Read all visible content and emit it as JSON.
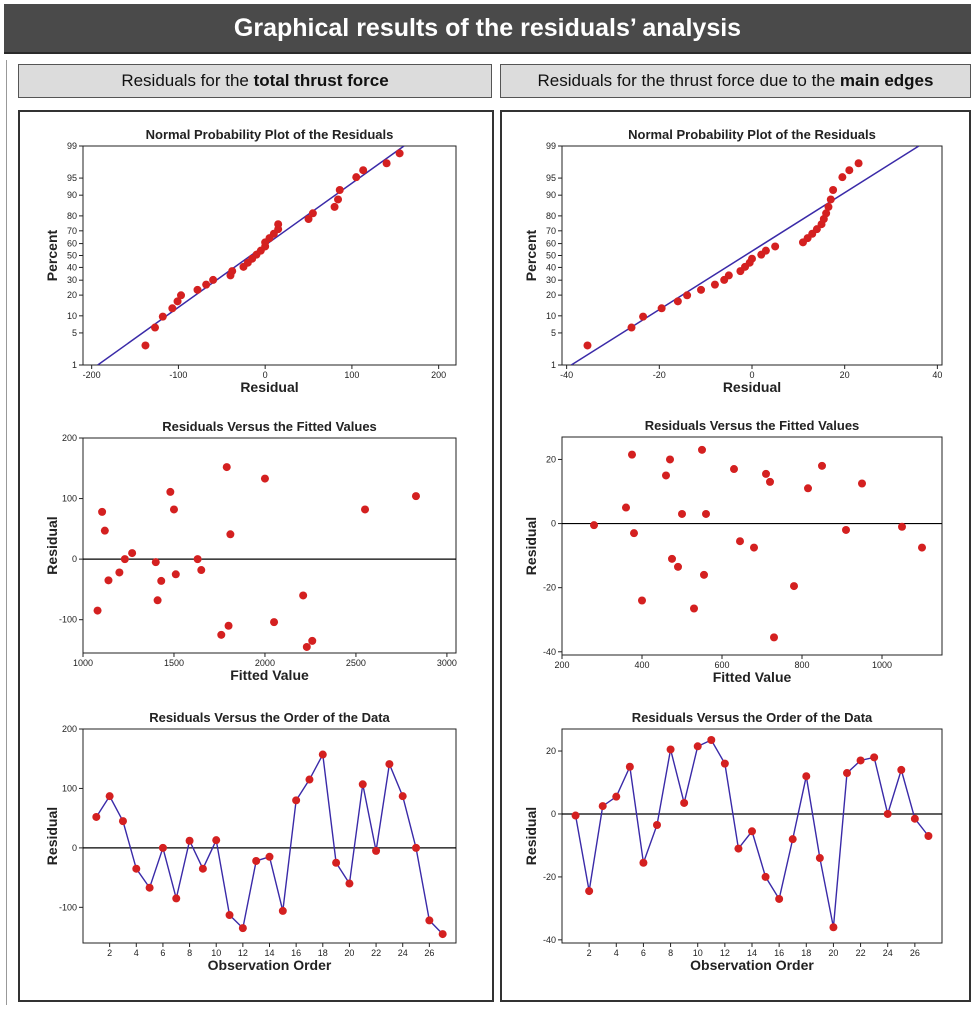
{
  "banner_title": "Graphical results of the residuals’ analysis",
  "left_header": {
    "prefix": "Residuals for the ",
    "bold": "total thrust force"
  },
  "right_header": {
    "prefix": "Residuals for the thrust force due to the ",
    "bold": "main edges"
  },
  "colors": {
    "point": "#d42020",
    "line": "#3a2aa8",
    "zero_line": "#000000",
    "banner": "#4a4a4a",
    "header_bg": "#dcdcdc"
  },
  "chart_data": [
    {
      "id": "left-npp",
      "type": "scatter",
      "title": "Normal Probability Plot of the Residuals",
      "xlabel": "Residual",
      "ylabel": "Percent",
      "xlim": [
        -210,
        220
      ],
      "x_ticks": [
        -200,
        -100,
        0,
        100,
        200
      ],
      "y_scale": "normal-probability",
      "ylim": [
        1,
        99
      ],
      "y_ticks": [
        1,
        5,
        10,
        20,
        30,
        40,
        50,
        60,
        70,
        80,
        90,
        95,
        99
      ],
      "fit_line": {
        "x": [
          -193,
          160
        ],
        "y": [
          1,
          99
        ]
      },
      "points": {
        "x": [
          -138,
          -127,
          -118,
          -107,
          -101,
          -97,
          -78,
          -68,
          -60,
          -40,
          -38,
          -25,
          -20,
          -15,
          -10,
          -5,
          0,
          0,
          5,
          10,
          15,
          15,
          50,
          55,
          80,
          84,
          86,
          105,
          113,
          140,
          155
        ],
        "y": [
          2.8,
          6.3,
          9.7,
          13.1,
          16.5,
          19.9,
          23.3,
          26.8,
          30.2,
          33.6,
          37.0,
          40.5,
          43.9,
          47.3,
          50.7,
          54.1,
          57.6,
          61.0,
          64.4,
          67.8,
          71.2,
          74.7,
          78.1,
          81.5,
          84.9,
          88.3,
          91.8,
          95.2,
          96.5,
          97.5,
          98.5
        ]
      }
    },
    {
      "id": "left-fitted",
      "type": "scatter",
      "title": "Residuals Versus the Fitted Values",
      "xlabel": "Fitted Value",
      "ylabel": "Residual",
      "xlim": [
        1000,
        3050
      ],
      "x_ticks": [
        1000,
        1500,
        2000,
        2500,
        3000
      ],
      "ylim": [
        -155,
        200
      ],
      "y_ticks": [
        -100,
        0,
        100,
        200
      ],
      "zero_line": true,
      "points": {
        "x": [
          1080,
          1105,
          1120,
          1140,
          1200,
          1230,
          1270,
          1400,
          1410,
          1430,
          1480,
          1500,
          1510,
          1630,
          1650,
          1760,
          1790,
          1800,
          1810,
          2000,
          2050,
          2210,
          2230,
          2260,
          2550,
          2830
        ],
        "y": [
          -85,
          78,
          47,
          -35,
          -22,
          0,
          10,
          -5,
          -68,
          -36,
          111,
          82,
          -25,
          0,
          -18,
          -125,
          152,
          -110,
          41,
          133,
          -104,
          -60,
          -145,
          -135,
          82,
          104
        ]
      }
    },
    {
      "id": "left-order",
      "type": "line",
      "title": "Residuals Versus the Order of the Data",
      "xlabel": "Observation Order",
      "ylabel": "Residual",
      "xlim": [
        0,
        28
      ],
      "x_ticks": [
        2,
        4,
        6,
        8,
        10,
        12,
        14,
        16,
        18,
        20,
        22,
        24,
        26
      ],
      "ylim": [
        -160,
        200
      ],
      "y_ticks": [
        -100,
        0,
        100,
        200
      ],
      "zero_line": true,
      "x": [
        1,
        2,
        3,
        4,
        5,
        6,
        7,
        8,
        9,
        10,
        11,
        12,
        13,
        14,
        15,
        16,
        17,
        18,
        19,
        20,
        21,
        22,
        23,
        24,
        25,
        26,
        27
      ],
      "y": [
        52,
        87,
        45,
        -35,
        -67,
        0,
        -85,
        12,
        -35,
        13,
        -113,
        -135,
        -22,
        -15,
        -106,
        80,
        115,
        157,
        -25,
        -60,
        107,
        -5,
        141,
        87,
        0,
        -122,
        -145
      ]
    },
    {
      "id": "right-npp",
      "type": "scatter",
      "title": "Normal Probability Plot of the Residuals",
      "xlabel": "Residual",
      "ylabel": "Percent",
      "xlim": [
        -41,
        41
      ],
      "x_ticks": [
        -40,
        -20,
        0,
        20,
        40
      ],
      "y_scale": "normal-probability",
      "ylim": [
        1,
        99
      ],
      "y_ticks": [
        1,
        5,
        10,
        20,
        30,
        40,
        50,
        60,
        70,
        80,
        90,
        95,
        99
      ],
      "fit_line": {
        "x": [
          -39,
          36
        ],
        "y": [
          1,
          99
        ]
      },
      "points": {
        "x": [
          -35.5,
          -26,
          -23.5,
          -19.5,
          -16,
          -14,
          -11,
          -8,
          -6,
          -5,
          -2.5,
          -1.5,
          -0.5,
          0,
          2,
          3,
          5,
          11,
          12,
          13,
          14,
          15,
          15.5,
          16,
          16.5,
          17,
          17.5,
          19.5,
          21,
          23
        ],
        "y": [
          2.8,
          6.3,
          9.7,
          13.1,
          16.5,
          19.9,
          23.3,
          26.8,
          30.2,
          33.6,
          37.0,
          40.5,
          43.9,
          47.3,
          50.7,
          54.1,
          57.6,
          61.0,
          64.4,
          67.8,
          71.2,
          74.7,
          78.1,
          81.5,
          84.9,
          88.3,
          91.8,
          95.2,
          96.5,
          97.5
        ]
      }
    },
    {
      "id": "right-fitted",
      "type": "scatter",
      "title": "Residuals Versus the Fitted Values",
      "xlabel": "Fitted Value",
      "ylabel": "Residual",
      "xlim": [
        200,
        1150
      ],
      "x_ticks": [
        200,
        400,
        600,
        800,
        1000
      ],
      "ylim": [
        -41,
        27
      ],
      "y_ticks": [
        -40,
        -20,
        0,
        20
      ],
      "zero_line": true,
      "points": {
        "x": [
          280,
          360,
          375,
          380,
          400,
          460,
          470,
          475,
          490,
          500,
          530,
          550,
          555,
          560,
          630,
          645,
          680,
          710,
          720,
          730,
          780,
          815,
          850,
          910,
          950,
          1050,
          1100
        ],
        "y": [
          -0.5,
          5,
          21.5,
          -3,
          -24,
          15,
          20,
          -11,
          -13.5,
          3,
          -26.5,
          23,
          -16,
          3,
          17,
          -5.5,
          -7.5,
          15.5,
          13,
          -35.5,
          -19.5,
          11,
          18,
          -2,
          12.5,
          -1,
          -7.5
        ]
      }
    },
    {
      "id": "right-order",
      "type": "line",
      "title": "Residuals Versus the Order of the Data",
      "xlabel": "Observation Order",
      "ylabel": "Residual",
      "xlim": [
        0,
        28
      ],
      "x_ticks": [
        2,
        4,
        6,
        8,
        10,
        12,
        14,
        16,
        18,
        20,
        22,
        24,
        26
      ],
      "ylim": [
        -41,
        27
      ],
      "y_ticks": [
        -40,
        -20,
        0,
        20
      ],
      "zero_line": true,
      "x": [
        1,
        2,
        3,
        4,
        5,
        6,
        7,
        8,
        9,
        10,
        11,
        12,
        13,
        14,
        15,
        16,
        17,
        18,
        19,
        20,
        21,
        22,
        23,
        24,
        25,
        26,
        27
      ],
      "y": [
        -0.5,
        -24.5,
        2.5,
        5.5,
        15,
        -15.5,
        -3.5,
        20.5,
        3.5,
        21.5,
        23.5,
        16,
        -11,
        -5.5,
        -20,
        -27,
        -8,
        12,
        -14,
        -36,
        13,
        17,
        18,
        0,
        14,
        -1.5,
        -7
      ]
    }
  ]
}
